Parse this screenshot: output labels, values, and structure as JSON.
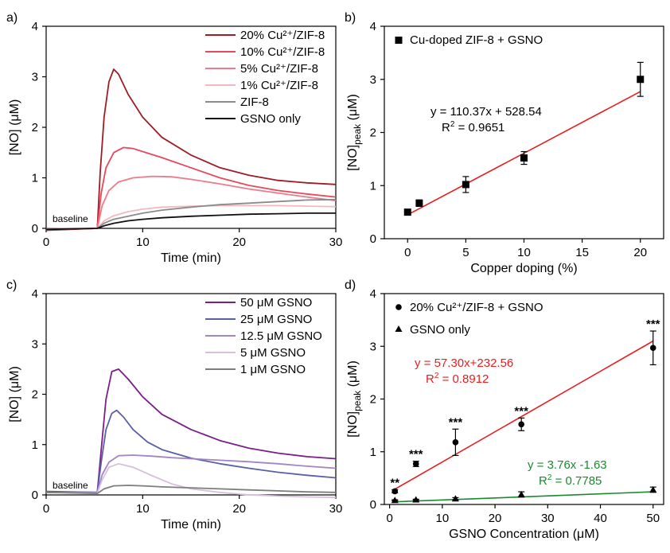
{
  "chart_data": [
    {
      "panel": "a)",
      "type": "line",
      "xlabel": "Time (min)",
      "ylabel": "[NO] (μM)",
      "xlim": [
        0,
        30
      ],
      "ylim": [
        0,
        4
      ],
      "xticks": [
        0,
        10,
        20,
        30
      ],
      "yticks": [
        0,
        1,
        2,
        3,
        4
      ],
      "legend": "top-right",
      "annotation": "baseline",
      "series": [
        {
          "name": "20% Cu²⁺/ZIF-8",
          "color": "#a01c24",
          "x": [
            0,
            5.3,
            5.6,
            6.0,
            6.5,
            7.0,
            7.5,
            8.5,
            10,
            12,
            15,
            18,
            21,
            24,
            27,
            30
          ],
          "values": [
            -0.04,
            0.0,
            1.1,
            2.2,
            2.9,
            3.15,
            3.05,
            2.65,
            2.2,
            1.8,
            1.45,
            1.2,
            1.05,
            0.95,
            0.9,
            0.87
          ]
        },
        {
          "name": "10% Cu²⁺/ZIF-8",
          "color": "#e8475c",
          "x": [
            0,
            5.3,
            5.7,
            6.2,
            7.0,
            8.0,
            9.0,
            10,
            12,
            15,
            18,
            21,
            24,
            27,
            30
          ],
          "values": [
            -0.03,
            0.0,
            0.7,
            1.2,
            1.5,
            1.6,
            1.58,
            1.52,
            1.4,
            1.2,
            1.0,
            0.85,
            0.75,
            0.68,
            0.62
          ]
        },
        {
          "name": "5% Cu²⁺/ZIF-8",
          "color": "#ec7b8c",
          "x": [
            0,
            5.3,
            5.8,
            6.5,
            7.5,
            9.0,
            11,
            13,
            15,
            18,
            21,
            24,
            27,
            30
          ],
          "values": [
            -0.02,
            0.0,
            0.45,
            0.75,
            0.92,
            1.0,
            1.03,
            1.02,
            0.97,
            0.88,
            0.78,
            0.7,
            0.62,
            0.55
          ]
        },
        {
          "name": "1% Cu²⁺/ZIF-8",
          "color": "#f3b9c2",
          "x": [
            0,
            5.3,
            6.0,
            7.0,
            8.5,
            10,
            12,
            15,
            18,
            21,
            24,
            27,
            30
          ],
          "values": [
            -0.01,
            0.0,
            0.15,
            0.25,
            0.33,
            0.38,
            0.42,
            0.44,
            0.45,
            0.45,
            0.45,
            0.44,
            0.43
          ]
        },
        {
          "name": "ZIF-8",
          "color": "#8a8a8a",
          "x": [
            0,
            5.3,
            6.0,
            7.0,
            8.5,
            10,
            12,
            15,
            18,
            21,
            24,
            27,
            30
          ],
          "values": [
            -0.02,
            0.0,
            0.1,
            0.18,
            0.24,
            0.3,
            0.36,
            0.42,
            0.47,
            0.5,
            0.53,
            0.56,
            0.57
          ]
        },
        {
          "name": "GSNO only",
          "color": "#111111",
          "x": [
            0,
            5.3,
            6.0,
            7.0,
            8.5,
            10,
            12,
            15,
            18,
            21,
            24,
            27,
            30
          ],
          "values": [
            -0.02,
            0.0,
            0.05,
            0.1,
            0.15,
            0.18,
            0.21,
            0.24,
            0.26,
            0.28,
            0.29,
            0.3,
            0.3
          ]
        }
      ]
    },
    {
      "panel": "b)",
      "type": "scatter",
      "xlabel": "Copper doping (%)",
      "ylabel": "[NO]peak (μM)",
      "xlim": [
        -2,
        22
      ],
      "ylim": [
        0,
        4
      ],
      "xticks": [
        0,
        5,
        10,
        15,
        20
      ],
      "yticks": [
        0,
        1,
        2,
        3,
        4
      ],
      "legend": "top-left",
      "series": [
        {
          "name": "Cu-doped ZIF-8 + GSNO",
          "color": "#000000",
          "marker": "square",
          "x": [
            0,
            1,
            5,
            10,
            20
          ],
          "values": [
            0.5,
            0.67,
            1.02,
            1.52,
            3.0
          ],
          "errors": [
            0.05,
            0.06,
            0.15,
            0.12,
            0.32
          ]
        }
      ],
      "fit": {
        "color": "#e62020",
        "x": [
          0,
          20
        ],
        "values": [
          0.45,
          2.77
        ],
        "equation": "y = 110.37x + 528.54",
        "r2_label": "R",
        "r2_value": " = 0.9651"
      }
    },
    {
      "panel": "c)",
      "type": "line",
      "xlabel": "Time (min)",
      "ylabel": "[NO] (μM)",
      "xlim": [
        0,
        30
      ],
      "ylim": [
        0,
        4
      ],
      "xticks": [
        0,
        10,
        20,
        30
      ],
      "yticks": [
        0,
        1,
        2,
        3,
        4
      ],
      "legend": "top-right",
      "annotation": "baseline",
      "series": [
        {
          "name": "50 μM GSNO",
          "color": "#7a1f8a",
          "x": [
            0,
            5.3,
            5.7,
            6.2,
            6.8,
            7.5,
            8.5,
            10,
            12,
            15,
            18,
            21,
            24,
            27,
            30
          ],
          "values": [
            0.07,
            0.05,
            0.9,
            1.9,
            2.45,
            2.5,
            2.3,
            1.95,
            1.6,
            1.3,
            1.08,
            0.93,
            0.83,
            0.76,
            0.72
          ]
        },
        {
          "name": "25 μM GSNO",
          "color": "#5b5fa8",
          "x": [
            0,
            5.3,
            5.7,
            6.2,
            6.8,
            7.3,
            8.0,
            9.0,
            10.5,
            12,
            15,
            18,
            21,
            24,
            27,
            30
          ],
          "values": [
            0.06,
            0.05,
            0.65,
            1.3,
            1.62,
            1.68,
            1.55,
            1.3,
            1.05,
            0.9,
            0.73,
            0.62,
            0.53,
            0.45,
            0.39,
            0.34
          ]
        },
        {
          "name": "12.5 μM GSNO",
          "color": "#a285c2",
          "x": [
            0,
            5.3,
            5.8,
            6.5,
            7.5,
            9.0,
            11,
            13,
            15,
            18,
            21,
            24,
            27,
            30
          ],
          "values": [
            0.05,
            0.04,
            0.4,
            0.65,
            0.78,
            0.79,
            0.77,
            0.74,
            0.72,
            0.69,
            0.66,
            0.62,
            0.57,
            0.53
          ]
        },
        {
          "name": "5 μM GSNO",
          "color": "#d8c0dc",
          "x": [
            0,
            5.3,
            5.8,
            6.5,
            7.5,
            9.0,
            11,
            13,
            15,
            18,
            21,
            24,
            27,
            30
          ],
          "values": [
            0.05,
            0.04,
            0.3,
            0.55,
            0.62,
            0.55,
            0.38,
            0.22,
            0.12,
            0.05,
            0.0,
            -0.02,
            -0.04,
            -0.05
          ]
        },
        {
          "name": "1 μM GSNO",
          "color": "#7d7d7d",
          "x": [
            0,
            5.3,
            6.0,
            7.0,
            8.5,
            10,
            12,
            15,
            18,
            21,
            24,
            27,
            30
          ],
          "values": [
            0.05,
            0.03,
            0.12,
            0.18,
            0.19,
            0.18,
            0.16,
            0.14,
            0.12,
            0.1,
            0.08,
            0.06,
            0.05
          ]
        }
      ]
    },
    {
      "panel": "d)",
      "type": "scatter",
      "xlabel": "GSNO Concentration (μM)",
      "ylabel": "[NO]peak (μM)",
      "xlim": [
        -1,
        52
      ],
      "ylim": [
        0,
        4
      ],
      "xticks": [
        0,
        10,
        20,
        30,
        40,
        50
      ],
      "yticks": [
        0,
        1,
        2,
        3,
        4
      ],
      "legend": "top-left",
      "series": [
        {
          "name": "20% Cu²⁺/ZIF-8 + GSNO",
          "color": "#000000",
          "marker": "circle",
          "x": [
            1,
            5,
            12.5,
            25,
            50
          ],
          "values": [
            0.25,
            0.77,
            1.18,
            1.52,
            2.97
          ],
          "errors": [
            0.03,
            0.05,
            0.25,
            0.12,
            0.32
          ],
          "significance": [
            "**",
            "***",
            "***",
            "***",
            "***"
          ]
        },
        {
          "name": "GSNO only",
          "color": "#000000",
          "marker": "triangle",
          "x": [
            1,
            5,
            12.5,
            25,
            50
          ],
          "values": [
            0.08,
            0.09,
            0.11,
            0.19,
            0.28
          ],
          "errors": [
            0.01,
            0.01,
            0.02,
            0.05,
            0.05
          ]
        }
      ],
      "fits": [
        {
          "color": "#e62020",
          "x": [
            1,
            50
          ],
          "values": [
            0.29,
            3.1
          ],
          "equation": "y = 57.30x+232.56",
          "r2_label": "R",
          "r2_value": " = 0.8912"
        },
        {
          "color": "#1a8a2e",
          "x": [
            1,
            50
          ],
          "values": [
            0.05,
            0.24
          ],
          "equation": "y = 3.76x -1.63",
          "r2_label": "R",
          "r2_value": " = 0.7785"
        }
      ]
    }
  ]
}
